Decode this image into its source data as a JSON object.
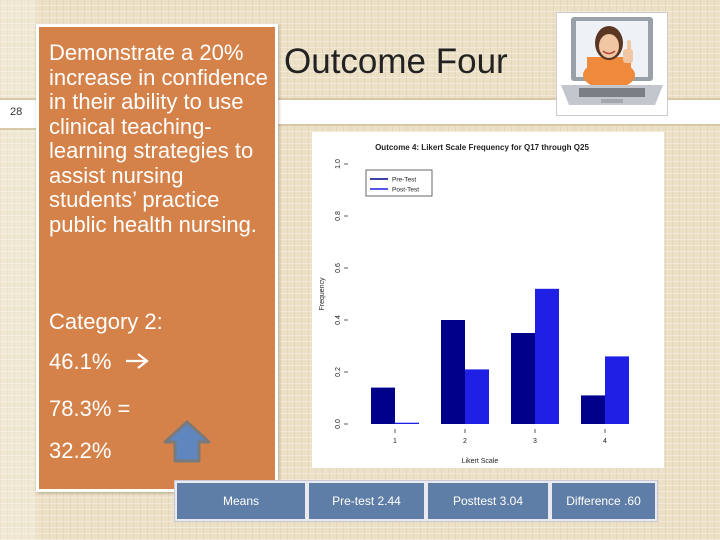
{
  "slide": {
    "number": "28",
    "title": "Outcome Four",
    "objective": "Demonstrate a 20% increase in confidence in their ability to use clinical teaching-learning strategies to assist nursing students’ practice public health nursing.",
    "category_label": "Category 2:",
    "pre_value": "46.1%",
    "post_value": "78.3% =",
    "difference_value": "32.2%"
  },
  "table": {
    "label": "Means",
    "pre": "Pre-test 2.44",
    "post": "Posttest 3.04",
    "difference": "Difference .60"
  },
  "icons": {
    "arrow": "right-arrow-icon",
    "up": "up-arrow-icon"
  },
  "colors": {
    "accent": "#d5824a",
    "pre_test": "#00008b",
    "post_test": "#1f1fe6",
    "table_cell": "#5f7ea7"
  },
  "chart_data": {
    "type": "bar",
    "title": "Outcome 4: Likert Scale Frequency for Q17 through Q25",
    "xlabel": "Likert Scale",
    "ylabel": "Frequency",
    "categories": [
      "1",
      "2",
      "3",
      "4"
    ],
    "y_ticks": [
      "0.0",
      "0.2",
      "0.4",
      "0.6",
      "0.8",
      "1.0"
    ],
    "ylim": [
      0,
      1.0
    ],
    "legend_position": "top-left",
    "series": [
      {
        "name": "Pre-Test",
        "values": [
          0.14,
          0.4,
          0.35,
          0.11
        ],
        "color": "#00008b"
      },
      {
        "name": "Post-Test",
        "values": [
          0.005,
          0.21,
          0.52,
          0.26
        ],
        "color": "#1f1fe6"
      }
    ]
  }
}
